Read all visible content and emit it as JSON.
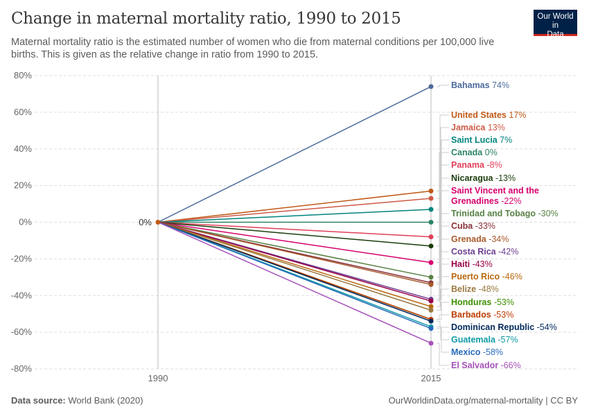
{
  "title": "Change in maternal mortality ratio, 1990 to 2015",
  "subtitle": "Maternal mortality ratio is the estimated number of women who die from maternal conditions per 100,000 live births. This is given as the relative change in ratio from 1990 to 2015.",
  "logo": "Our World in Data",
  "footer": {
    "source_label": "Data source:",
    "source": "World Bank (2020)",
    "url": "OurWorldinData.org/maternal-mortality | CC BY"
  },
  "chart_data": {
    "type": "line",
    "title": "Change in maternal mortality ratio, 1990 to 2015",
    "x": [
      1990,
      2015
    ],
    "x_ticks": [
      "1990",
      "2015"
    ],
    "ylim": [
      -80,
      80
    ],
    "y_ticks": [
      "80%",
      "60%",
      "40%",
      "20%",
      "0%",
      "-20%",
      "-40%",
      "-60%",
      "-80%"
    ],
    "y_tick_values": [
      80,
      60,
      40,
      20,
      0,
      -20,
      -40,
      -60,
      -80
    ],
    "start_label": "0%",
    "grid": true,
    "series": [
      {
        "name": "Bahamas",
        "label": "74%",
        "values": [
          0,
          74
        ],
        "color": "#4c6a9c"
      },
      {
        "name": "United States",
        "label": "17%",
        "values": [
          0,
          17
        ],
        "color": "#c05917"
      },
      {
        "name": "Jamaica",
        "label": "13%",
        "values": [
          0,
          13
        ],
        "color": "#ce5a45"
      },
      {
        "name": "Saint Lucia",
        "label": "7%",
        "values": [
          0,
          7
        ],
        "color": "#00847e"
      },
      {
        "name": "Canada",
        "label": "0%",
        "values": [
          0,
          0
        ],
        "color": "#2c8465"
      },
      {
        "name": "Panama",
        "label": "-8%",
        "values": [
          0,
          -8
        ],
        "color": "#e03f5a"
      },
      {
        "name": "Nicaragua",
        "label": "-13%",
        "values": [
          0,
          -13
        ],
        "color": "#1a3d0a"
      },
      {
        "name": "Saint Vincent and the Grenadines",
        "label": "-22%",
        "values": [
          0,
          -22
        ],
        "color": "#d6006d",
        "wrap": [
          "Saint Vincent and the",
          "Grenadines"
        ]
      },
      {
        "name": "Trinidad and Tobago",
        "label": "-30%",
        "values": [
          0,
          -30
        ],
        "color": "#578145"
      },
      {
        "name": "Cuba",
        "label": "-33%",
        "values": [
          0,
          -33
        ],
        "color": "#883039"
      },
      {
        "name": "Grenada",
        "label": "-34%",
        "values": [
          0,
          -34
        ],
        "color": "#a75a2c"
      },
      {
        "name": "Costa Rica",
        "label": "-42%",
        "values": [
          0,
          -42
        ],
        "color": "#6d3e91"
      },
      {
        "name": "Haiti",
        "label": "-43%",
        "values": [
          0,
          -43
        ],
        "color": "#970046"
      },
      {
        "name": "Puerto Rico",
        "label": "-46%",
        "values": [
          0,
          -46
        ],
        "color": "#b8680e"
      },
      {
        "name": "Belize",
        "label": "-48%",
        "values": [
          0,
          -48
        ],
        "color": "#9a7840"
      },
      {
        "name": "Honduras",
        "label": "-53%",
        "values": [
          0,
          -53
        ],
        "color": "#3e8f00"
      },
      {
        "name": "Barbados",
        "label": "-53%",
        "values": [
          0,
          -53
        ],
        "color": "#bd3c03"
      },
      {
        "name": "Dominican Republic",
        "label": "-54%",
        "values": [
          0,
          -54
        ],
        "color": "#00295b"
      },
      {
        "name": "Guatemala",
        "label": "-57%",
        "values": [
          0,
          -57
        ],
        "color": "#0f9ba6"
      },
      {
        "name": "Mexico",
        "label": "-58%",
        "values": [
          0,
          -58
        ],
        "color": "#286bbb"
      },
      {
        "name": "El Salvador",
        "label": "-66%",
        "values": [
          0,
          -66
        ],
        "color": "#a652ba"
      }
    ]
  }
}
